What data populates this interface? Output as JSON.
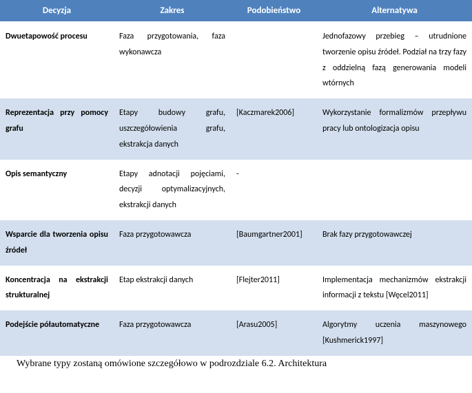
{
  "table": {
    "headers": {
      "decision": "Decyzja",
      "scope": "Zakres",
      "similarity": "Podobieństwo",
      "alternative": "Alternatywa"
    },
    "rows": [
      {
        "decision": "Dwuetapowość procesu",
        "scope": "Faza przygotowania, faza wykonawcza",
        "similarity": "",
        "alternative": "Jednofazowy przebieg – utrudnione tworzenie opisu źródeł. Podział na trzy fazy z oddzielną fazą generowania modeli wtórnych"
      },
      {
        "decision": "Reprezentacja przy pomocy grafu",
        "scope": "Etapy budowy grafu, uszczegółowienia grafu, ekstrakcja danych",
        "similarity": "[Kaczmarek2006]",
        "alternative": "Wykorzystanie formalizmów przepływu pracy lub ontologizacja opisu"
      },
      {
        "decision": "Opis semantyczny",
        "scope": "Etapy adnotacji pojęciami, decyzji optymalizacyjnych, ekstrakcji danych",
        "similarity": "-",
        "alternative": ""
      },
      {
        "decision": "Wsparcie dla tworzenia opisu źródeł",
        "scope": "Faza przygotowawcza",
        "similarity": "[Baumgartner2001]",
        "alternative": "Brak fazy przygotowawczej"
      },
      {
        "decision": "Koncentracja na ekstrakcji strukturalnej",
        "scope": "Etap ekstrakcji danych",
        "similarity": "[Flejter2011]",
        "alternative": "Implementacja mechanizmów ekstrakcji informacji z tekstu [Węcel2011]"
      },
      {
        "decision": "Podejście półautomatyczne",
        "scope": "Faza przygotowawcza",
        "similarity": "[Arasu2005]",
        "alternative": "Algorytmy uczenia maszynowego [Kushmerick1997]"
      }
    ]
  },
  "footnote": "Wybrane typy zostaną omówione szczegółowo w podrozdziale 6.2. Architektura",
  "colors": {
    "header_bg": "#4f81bd",
    "header_text": "#ffffff",
    "row_odd_bg": "#ffffff",
    "row_even_bg": "#d3dfee",
    "text": "#000000"
  }
}
